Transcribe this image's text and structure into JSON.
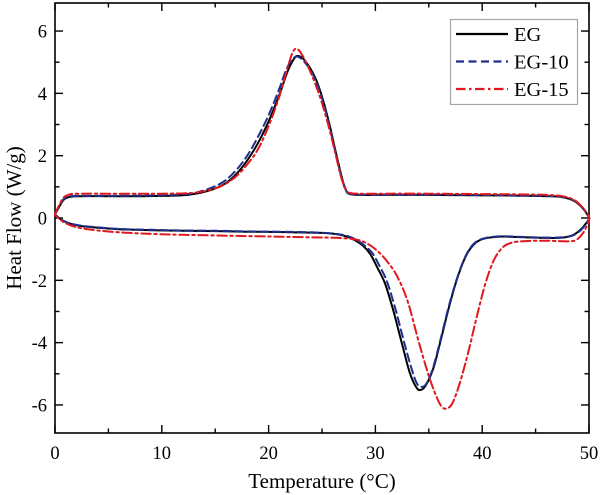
{
  "figure": {
    "background": "#ffffff",
    "axis_color": "#000000",
    "legend_border_color": "#a6a6a6"
  },
  "chart_data": {
    "type": "line",
    "title": "",
    "xlabel": "Temperature (°C)",
    "ylabel": "Heat Flow (W/g)",
    "xlim": [
      0,
      50
    ],
    "ylim": [
      -6.9,
      6.9
    ],
    "grid": false,
    "xticks": {
      "major": [
        0,
        10,
        20,
        30,
        40,
        50
      ],
      "minor": [
        5,
        15,
        25,
        35,
        45
      ]
    },
    "yticks": {
      "major": [
        6,
        4,
        2,
        0,
        -2,
        -4,
        -6
      ],
      "minor": [
        5,
        3,
        1,
        -1,
        -3,
        -5
      ]
    },
    "legend": {
      "position": "top-right"
    },
    "series": [
      {
        "name": "EG",
        "color": "#000000",
        "style": "solid",
        "description": "heating peak 5.2 W/g at ~22.8 C, cooling dip -5.5 W/g at ~34 C",
        "points": [
          [
            0,
            0.12
          ],
          [
            0.3,
            0.3
          ],
          [
            0.8,
            0.58
          ],
          [
            1.4,
            0.68
          ],
          [
            2.5,
            0.7
          ],
          [
            5,
            0.7
          ],
          [
            8,
            0.7
          ],
          [
            10,
            0.71
          ],
          [
            12,
            0.73
          ],
          [
            13,
            0.77
          ],
          [
            14,
            0.84
          ],
          [
            15,
            0.95
          ],
          [
            16,
            1.12
          ],
          [
            17,
            1.42
          ],
          [
            18,
            1.85
          ],
          [
            19,
            2.4
          ],
          [
            20,
            3.1
          ],
          [
            21,
            3.95
          ],
          [
            21.8,
            4.72
          ],
          [
            22.4,
            5.12
          ],
          [
            22.8,
            5.2
          ],
          [
            23.4,
            5.05
          ],
          [
            24.3,
            4.55
          ],
          [
            25,
            3.9
          ],
          [
            25.7,
            3.0
          ],
          [
            26.3,
            2.1
          ],
          [
            26.9,
            1.25
          ],
          [
            27.3,
            0.85
          ],
          [
            27.7,
            0.76
          ],
          [
            28.5,
            0.74
          ],
          [
            31,
            0.74
          ],
          [
            35,
            0.74
          ],
          [
            39,
            0.73
          ],
          [
            43,
            0.72
          ],
          [
            46,
            0.7
          ],
          [
            47.5,
            0.67
          ],
          [
            48.6,
            0.55
          ],
          [
            49.4,
            0.32
          ],
          [
            49.9,
            0.08
          ],
          [
            50,
            0.02
          ],
          [
            50,
            -0.04
          ],
          [
            49.7,
            -0.18
          ],
          [
            49.2,
            -0.38
          ],
          [
            48.5,
            -0.55
          ],
          [
            47.5,
            -0.63
          ],
          [
            46,
            -0.64
          ],
          [
            44,
            -0.62
          ],
          [
            42.5,
            -0.6
          ],
          [
            41.5,
            -0.6
          ],
          [
            40.2,
            -0.66
          ],
          [
            39.3,
            -0.82
          ],
          [
            38.5,
            -1.2
          ],
          [
            37.7,
            -1.9
          ],
          [
            36.9,
            -2.85
          ],
          [
            36.1,
            -3.95
          ],
          [
            35.4,
            -4.85
          ],
          [
            34.7,
            -5.38
          ],
          [
            34.2,
            -5.52
          ],
          [
            33.8,
            -5.42
          ],
          [
            33.2,
            -4.95
          ],
          [
            32.5,
            -4.05
          ],
          [
            31.7,
            -3.0
          ],
          [
            30.9,
            -2.1
          ],
          [
            30.2,
            -1.6
          ],
          [
            29.5,
            -1.15
          ],
          [
            28.8,
            -0.88
          ],
          [
            28,
            -0.7
          ],
          [
            27.2,
            -0.58
          ],
          [
            26,
            -0.5
          ],
          [
            24,
            -0.47
          ],
          [
            21,
            -0.45
          ],
          [
            18,
            -0.44
          ],
          [
            15,
            -0.42
          ],
          [
            12,
            -0.41
          ],
          [
            9,
            -0.39
          ],
          [
            6,
            -0.36
          ],
          [
            4,
            -0.31
          ],
          [
            2.5,
            -0.26
          ],
          [
            1.5,
            -0.19
          ],
          [
            0.8,
            -0.1
          ],
          [
            0.3,
            0.02
          ],
          [
            0,
            0.1
          ]
        ]
      },
      {
        "name": "EG-10",
        "color": "#1f2f8f",
        "style": "dashed",
        "description": "heating peak 5.17 W/g at ~22.6 C, cooling dip -5.42 W/g at ~34.3 C",
        "points": [
          [
            0,
            0.12
          ],
          [
            0.3,
            0.32
          ],
          [
            0.8,
            0.6
          ],
          [
            1.4,
            0.7
          ],
          [
            2.5,
            0.71
          ],
          [
            5,
            0.71
          ],
          [
            8,
            0.72
          ],
          [
            10,
            0.73
          ],
          [
            12,
            0.76
          ],
          [
            13,
            0.8
          ],
          [
            14,
            0.89
          ],
          [
            15,
            1.02
          ],
          [
            16,
            1.22
          ],
          [
            17,
            1.55
          ],
          [
            18,
            2.0
          ],
          [
            19,
            2.6
          ],
          [
            20,
            3.3
          ],
          [
            21,
            4.15
          ],
          [
            21.7,
            4.8
          ],
          [
            22.3,
            5.12
          ],
          [
            22.8,
            5.17
          ],
          [
            23.5,
            4.95
          ],
          [
            24.3,
            4.5
          ],
          [
            25,
            3.85
          ],
          [
            25.7,
            2.95
          ],
          [
            26.3,
            2.05
          ],
          [
            26.9,
            1.22
          ],
          [
            27.3,
            0.84
          ],
          [
            27.7,
            0.77
          ],
          [
            28.5,
            0.75
          ],
          [
            31,
            0.75
          ],
          [
            35,
            0.75
          ],
          [
            39,
            0.74
          ],
          [
            43,
            0.73
          ],
          [
            46,
            0.71
          ],
          [
            47.5,
            0.68
          ],
          [
            48.6,
            0.56
          ],
          [
            49.4,
            0.33
          ],
          [
            49.9,
            0.09
          ],
          [
            50,
            0.03
          ],
          [
            50,
            -0.05
          ],
          [
            49.7,
            -0.2
          ],
          [
            49.2,
            -0.4
          ],
          [
            48.5,
            -0.56
          ],
          [
            47.5,
            -0.62
          ],
          [
            46,
            -0.63
          ],
          [
            44,
            -0.61
          ],
          [
            42.5,
            -0.59
          ],
          [
            41.5,
            -0.59
          ],
          [
            40.2,
            -0.65
          ],
          [
            39.3,
            -0.8
          ],
          [
            38.5,
            -1.18
          ],
          [
            37.7,
            -1.88
          ],
          [
            36.9,
            -2.8
          ],
          [
            36.1,
            -3.9
          ],
          [
            35.4,
            -4.8
          ],
          [
            34.8,
            -5.3
          ],
          [
            34.35,
            -5.42
          ],
          [
            33.9,
            -5.32
          ],
          [
            33.4,
            -4.85
          ],
          [
            32.7,
            -4.0
          ],
          [
            31.9,
            -2.95
          ],
          [
            31.1,
            -2.05
          ],
          [
            30.4,
            -1.55
          ],
          [
            29.7,
            -1.12
          ],
          [
            28.9,
            -0.86
          ],
          [
            28.1,
            -0.68
          ],
          [
            27.3,
            -0.57
          ],
          [
            26,
            -0.5
          ],
          [
            24,
            -0.46
          ],
          [
            21,
            -0.44
          ],
          [
            18,
            -0.43
          ],
          [
            15,
            -0.41
          ],
          [
            12,
            -0.4
          ],
          [
            9,
            -0.38
          ],
          [
            6,
            -0.35
          ],
          [
            4,
            -0.3
          ],
          [
            2.5,
            -0.25
          ],
          [
            1.5,
            -0.18
          ],
          [
            0.8,
            -0.09
          ],
          [
            0.3,
            0.03
          ],
          [
            0,
            0.11
          ]
        ]
      },
      {
        "name": "EG-15",
        "color": "#e0191f",
        "style": "dashdot",
        "description": "heating peak 5.42 W/g at ~22.7 C, cooling dip -6.12 W/g at ~36.6 C",
        "points": [
          [
            0,
            0.12
          ],
          [
            0.3,
            0.35
          ],
          [
            0.8,
            0.65
          ],
          [
            1.4,
            0.76
          ],
          [
            2.5,
            0.78
          ],
          [
            5,
            0.78
          ],
          [
            8,
            0.78
          ],
          [
            10,
            0.78
          ],
          [
            12,
            0.79
          ],
          [
            13,
            0.81
          ],
          [
            14,
            0.86
          ],
          [
            15,
            0.95
          ],
          [
            16,
            1.1
          ],
          [
            17,
            1.35
          ],
          [
            18,
            1.72
          ],
          [
            19,
            2.2
          ],
          [
            20,
            2.95
          ],
          [
            21,
            3.9
          ],
          [
            21.8,
            4.85
          ],
          [
            22.3,
            5.35
          ],
          [
            22.7,
            5.42
          ],
          [
            23.2,
            5.2
          ],
          [
            23.9,
            4.7
          ],
          [
            24.7,
            4.0
          ],
          [
            25.5,
            3.1
          ],
          [
            26.2,
            2.15
          ],
          [
            26.8,
            1.3
          ],
          [
            27.3,
            0.88
          ],
          [
            27.7,
            0.8
          ],
          [
            28.5,
            0.78
          ],
          [
            31,
            0.78
          ],
          [
            35,
            0.78
          ],
          [
            39,
            0.77
          ],
          [
            43,
            0.76
          ],
          [
            46,
            0.74
          ],
          [
            47.5,
            0.7
          ],
          [
            48.6,
            0.58
          ],
          [
            49.4,
            0.34
          ],
          [
            49.9,
            0.1
          ],
          [
            50,
            0.03
          ],
          [
            50,
            -0.08
          ],
          [
            49.8,
            -0.25
          ],
          [
            49.4,
            -0.5
          ],
          [
            48.8,
            -0.7
          ],
          [
            48,
            -0.75
          ],
          [
            46,
            -0.73
          ],
          [
            44,
            -0.74
          ],
          [
            42.7,
            -0.8
          ],
          [
            41.9,
            -0.95
          ],
          [
            41.1,
            -1.35
          ],
          [
            40.3,
            -2.1
          ],
          [
            39.5,
            -3.15
          ],
          [
            38.7,
            -4.3
          ],
          [
            37.9,
            -5.3
          ],
          [
            37.2,
            -5.95
          ],
          [
            36.6,
            -6.12
          ],
          [
            36.1,
            -6.0
          ],
          [
            35.5,
            -5.55
          ],
          [
            34.8,
            -4.85
          ],
          [
            34,
            -3.9
          ],
          [
            33,
            -2.65
          ],
          [
            32,
            -1.85
          ],
          [
            31,
            -1.35
          ],
          [
            30,
            -1.0
          ],
          [
            29,
            -0.78
          ],
          [
            28,
            -0.68
          ],
          [
            26.5,
            -0.64
          ],
          [
            24,
            -0.62
          ],
          [
            21,
            -0.6
          ],
          [
            18,
            -0.58
          ],
          [
            15,
            -0.56
          ],
          [
            12,
            -0.54
          ],
          [
            9,
            -0.51
          ],
          [
            6,
            -0.46
          ],
          [
            4,
            -0.4
          ],
          [
            2.5,
            -0.33
          ],
          [
            1.5,
            -0.24
          ],
          [
            0.8,
            -0.13
          ],
          [
            0.3,
            0.0
          ],
          [
            0,
            0.1
          ]
        ]
      }
    ]
  }
}
